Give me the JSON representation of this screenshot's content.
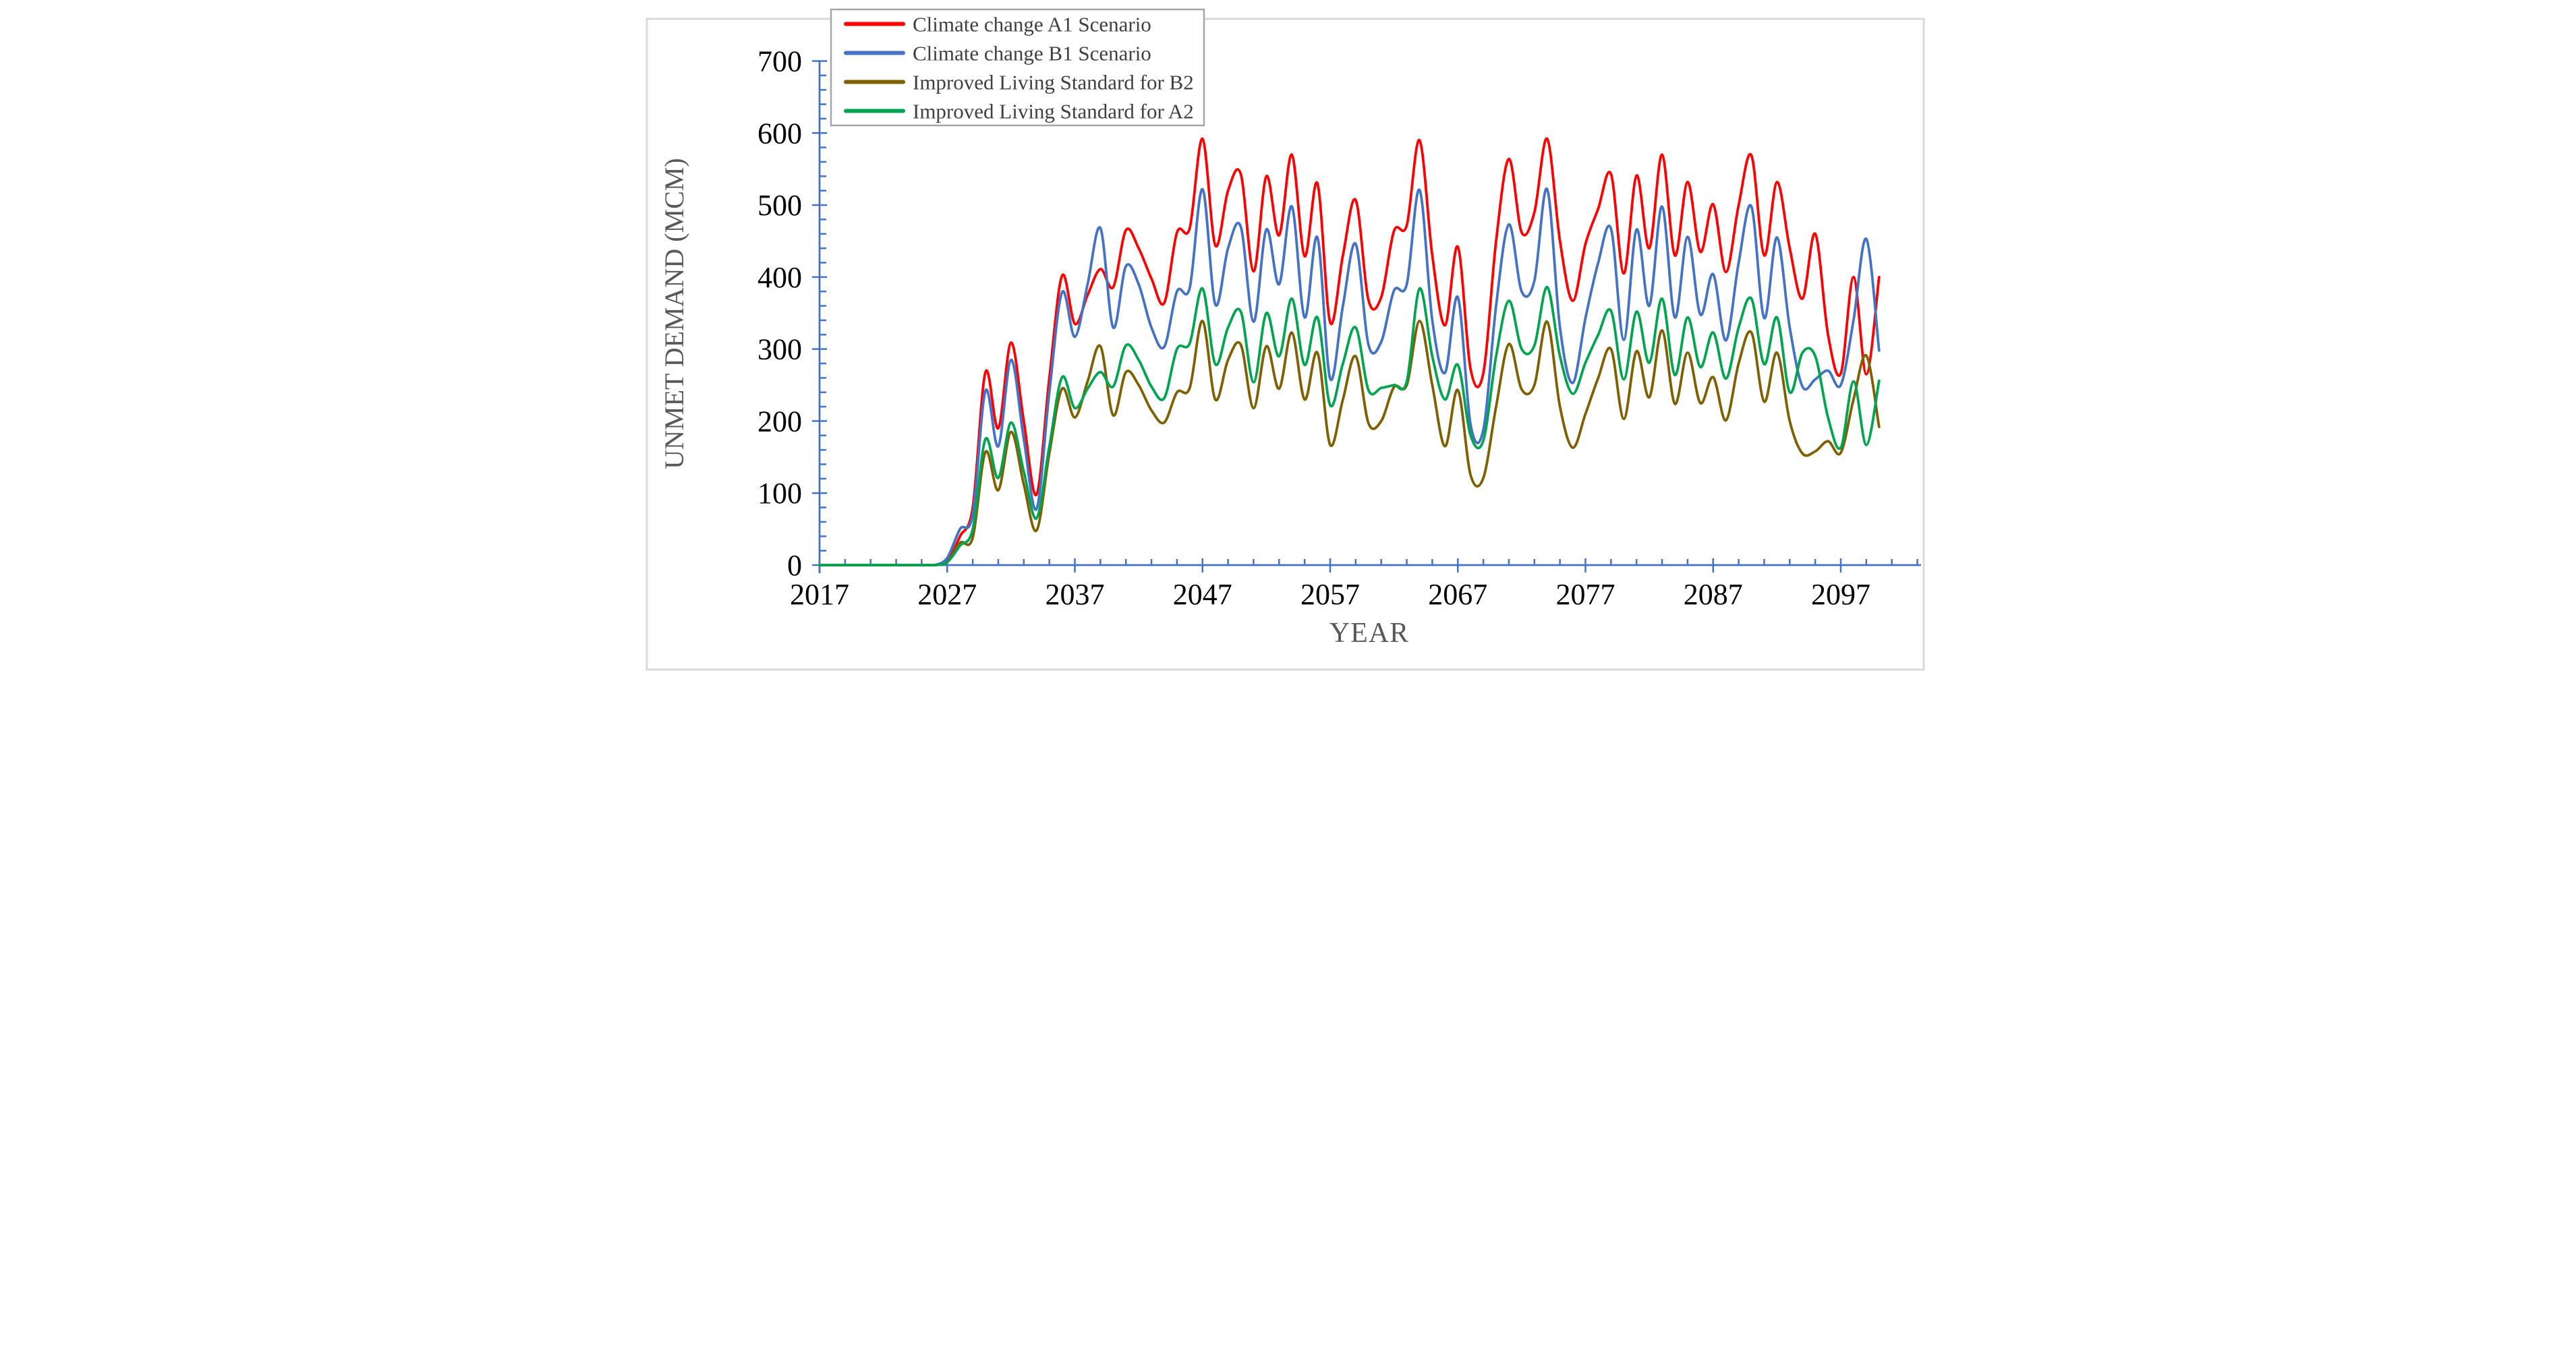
{
  "figure": {
    "border_color": "#D9D9D9",
    "background": "#FFFFFF"
  },
  "legend": {
    "border_color": "#A6A6A6",
    "text_color": "#404040",
    "items": [
      {
        "label": "Climate change A1 Scenario",
        "color": "#FF0000"
      },
      {
        "label": "Climate change B1 Scenario",
        "color": "#4472C4"
      },
      {
        "label": "Improved Living Standard for B2",
        "color": "#7F6000"
      },
      {
        "label": "Improved Living Standard for A2",
        "color": "#00A450"
      }
    ]
  },
  "chart_data": {
    "type": "line",
    "title": "",
    "xlabel": "YEAR",
    "ylabel": "UNMET DEMAND (MCM)",
    "axis_color": "#4472C4",
    "tick_label_color": "#000000",
    "axis_title_color": "#595959",
    "grid": false,
    "legend_position": "top-left",
    "x_start": 2017,
    "x_end": 2100,
    "ylim": [
      0,
      700
    ],
    "x_major_ticks": [
      2017,
      2027,
      2037,
      2047,
      2057,
      2067,
      2077,
      2087,
      2097
    ],
    "x_minor_step": 2,
    "y_major_step": 100,
    "y_minor_step": 20,
    "x_tick_labels": [
      "2017",
      "2027",
      "2037",
      "2047",
      "2057",
      "2067",
      "2077",
      "2087",
      "2097"
    ],
    "y_tick_labels": [
      "0",
      "100",
      "200",
      "300",
      "400",
      "500",
      "600",
      "700"
    ],
    "series": [
      {
        "name": "Climate change A1 Scenario",
        "color": "#FF0000",
        "values": [
          0,
          0,
          0,
          0,
          0,
          0,
          0,
          0,
          0,
          0,
          5,
          40,
          80,
          268,
          190,
          309,
          200,
          98,
          260,
          402,
          335,
          375,
          411,
          386,
          465,
          440,
          398,
          364,
          462,
          468,
          592,
          444,
          520,
          543,
          408,
          540,
          458,
          570,
          429,
          530,
          337,
          430,
          507,
          368,
          372,
          464,
          472,
          590,
          430,
          333,
          442,
          272,
          267,
          450,
          564,
          462,
          490,
          592,
          450,
          367,
          446,
          495,
          543,
          405,
          541,
          440,
          570,
          430,
          532,
          435,
          501,
          407,
          500,
          569,
          430,
          532,
          440,
          370,
          460,
          320,
          266,
          400,
          265,
          400
        ]
      },
      {
        "name": "Climate change B1 Scenario",
        "color": "#4472C4",
        "values": [
          0,
          0,
          0,
          0,
          0,
          0,
          0,
          0,
          0,
          0,
          10,
          50,
          70,
          242,
          165,
          285,
          175,
          78,
          240,
          379,
          317,
          390,
          468,
          330,
          415,
          390,
          330,
          303,
          380,
          385,
          522,
          362,
          440,
          470,
          338,
          466,
          390,
          498,
          344,
          455,
          259,
          360,
          446,
          306,
          310,
          381,
          390,
          521,
          340,
          267,
          372,
          195,
          188,
          360,
          473,
          380,
          395,
          522,
          330,
          253,
          343,
          420,
          467,
          313,
          466,
          360,
          498,
          344,
          456,
          348,
          404,
          312,
          420,
          498,
          343,
          455,
          330,
          248,
          258,
          270,
          250,
          340,
          453,
          298
        ]
      },
      {
        "name": "Improved Living Standard for B2",
        "color": "#7F6000",
        "values": [
          0,
          0,
          0,
          0,
          0,
          0,
          0,
          0,
          0,
          0,
          4,
          31,
          38,
          157,
          104,
          185,
          112,
          48,
          155,
          245,
          205,
          255,
          304,
          208,
          268,
          250,
          215,
          198,
          240,
          246,
          339,
          230,
          285,
          306,
          218,
          304,
          245,
          323,
          230,
          295,
          167,
          230,
          290,
          197,
          200,
          247,
          250,
          339,
          250,
          165,
          243,
          125,
          121,
          220,
          307,
          244,
          250,
          338,
          220,
          163,
          210,
          260,
          300,
          203,
          297,
          233,
          326,
          224,
          295,
          225,
          261,
          201,
          280,
          323,
          227,
          295,
          200,
          155,
          158,
          172,
          156,
          230,
          291,
          192
        ]
      },
      {
        "name": "Improved Living Standard for A2",
        "color": "#00A450",
        "values": [
          0,
          0,
          0,
          0,
          0,
          0,
          0,
          0,
          0,
          0,
          4,
          27,
          50,
          175,
          121,
          198,
          130,
          65,
          165,
          261,
          218,
          245,
          268,
          248,
          305,
          285,
          248,
          232,
          300,
          308,
          384,
          279,
          330,
          352,
          254,
          350,
          290,
          370,
          278,
          344,
          222,
          280,
          330,
          243,
          246,
          250,
          255,
          384,
          290,
          230,
          278,
          180,
          173,
          290,
          367,
          300,
          305,
          386,
          290,
          238,
          281,
          320,
          353,
          258,
          352,
          281,
          370,
          264,
          344,
          275,
          323,
          259,
          330,
          370,
          279,
          344,
          240,
          295,
          290,
          205,
          163,
          255,
          167,
          256
        ]
      }
    ]
  }
}
